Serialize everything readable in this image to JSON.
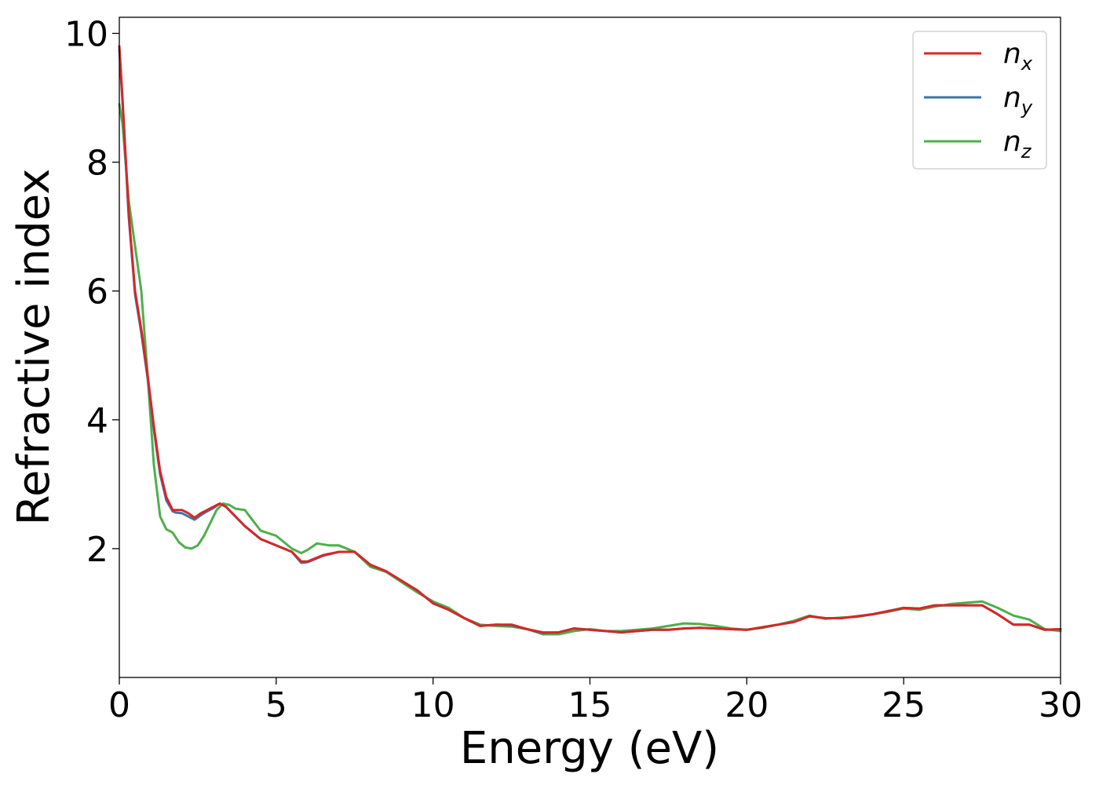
{
  "chart_data": {
    "type": "line",
    "xlabel": "Energy (eV)",
    "ylabel": "Refractive index",
    "xlim": [
      0,
      30
    ],
    "ylim": [
      0,
      10.25
    ],
    "xticks": [
      0,
      5,
      10,
      15,
      20,
      25,
      30
    ],
    "yticks": [
      2,
      4,
      6,
      8,
      10
    ],
    "grid": false,
    "legend": {
      "placement": "top-right"
    },
    "series": [
      {
        "name": "n_x",
        "label_base": "n",
        "label_sub": "x",
        "color": "#d62728",
        "x": [
          0,
          0.1,
          0.3,
          0.5,
          0.7,
          0.9,
          1.1,
          1.3,
          1.5,
          1.7,
          1.8,
          2.0,
          2.2,
          2.4,
          2.6,
          2.8,
          3.0,
          3.2,
          3.4,
          3.6,
          3.8,
          4.0,
          4.5,
          5.0,
          5.5,
          5.8,
          6.0,
          6.5,
          7.0,
          7.5,
          8.0,
          8.5,
          9.0,
          9.5,
          10.0,
          10.5,
          11.0,
          11.5,
          12.0,
          12.5,
          13.0,
          13.5,
          14.0,
          14.5,
          15.0,
          15.5,
          16.0,
          16.5,
          17.0,
          17.5,
          18.0,
          18.5,
          19.0,
          19.5,
          20.0,
          20.5,
          21.0,
          21.5,
          22.0,
          22.5,
          23.0,
          23.5,
          24.0,
          24.5,
          25.0,
          25.5,
          26.0,
          26.5,
          27.0,
          27.5,
          28.0,
          28.5,
          29.0,
          29.5,
          30.0
        ],
        "y": [
          9.8,
          9.0,
          7.2,
          6.0,
          5.4,
          4.7,
          3.9,
          3.2,
          2.8,
          2.6,
          2.6,
          2.6,
          2.55,
          2.48,
          2.55,
          2.6,
          2.65,
          2.7,
          2.65,
          2.55,
          2.45,
          2.35,
          2.15,
          2.05,
          1.95,
          1.8,
          1.8,
          1.9,
          1.95,
          1.95,
          1.75,
          1.65,
          1.5,
          1.35,
          1.15,
          1.05,
          0.92,
          0.8,
          0.82,
          0.82,
          0.75,
          0.7,
          0.7,
          0.76,
          0.74,
          0.72,
          0.7,
          0.72,
          0.74,
          0.74,
          0.76,
          0.77,
          0.76,
          0.75,
          0.74,
          0.78,
          0.82,
          0.86,
          0.95,
          0.92,
          0.92,
          0.95,
          0.98,
          1.03,
          1.08,
          1.07,
          1.12,
          1.12,
          1.12,
          1.12,
          0.98,
          0.82,
          0.82,
          0.74,
          0.75
        ]
      },
      {
        "name": "n_y",
        "label_base": "n",
        "label_sub": "y",
        "color": "#3d75a8",
        "x": [
          0,
          0.1,
          0.3,
          0.5,
          0.7,
          0.9,
          1.1,
          1.3,
          1.5,
          1.7,
          1.8,
          2.0,
          2.2,
          2.4,
          2.6,
          2.8,
          3.0,
          3.2,
          3.4,
          3.6,
          3.8,
          4.0,
          4.5,
          5.0,
          5.5,
          5.8,
          6.0,
          6.5,
          7.0,
          7.5,
          8.0,
          8.5,
          9.0,
          9.5,
          10.0,
          10.5,
          11.0,
          11.5,
          12.0,
          12.5,
          13.0,
          13.5,
          14.0,
          14.5,
          15.0,
          15.5,
          16.0,
          16.5,
          17.0,
          17.5,
          18.0,
          18.5,
          19.0,
          19.5,
          20.0,
          20.5,
          21.0,
          21.5,
          22.0,
          22.5,
          23.0,
          23.5,
          24.0,
          24.5,
          25.0,
          25.5,
          26.0,
          26.5,
          27.0,
          27.5,
          28.0,
          28.5,
          29.0,
          29.5,
          30.0
        ],
        "y": [
          9.75,
          8.95,
          7.15,
          5.95,
          5.35,
          4.65,
          3.85,
          3.15,
          2.75,
          2.58,
          2.56,
          2.55,
          2.5,
          2.45,
          2.52,
          2.58,
          2.63,
          2.7,
          2.65,
          2.55,
          2.45,
          2.35,
          2.15,
          2.05,
          1.95,
          1.78,
          1.79,
          1.89,
          1.95,
          1.95,
          1.75,
          1.65,
          1.5,
          1.35,
          1.15,
          1.05,
          0.92,
          0.8,
          0.82,
          0.81,
          0.75,
          0.69,
          0.7,
          0.76,
          0.74,
          0.72,
          0.7,
          0.72,
          0.74,
          0.74,
          0.76,
          0.77,
          0.76,
          0.75,
          0.74,
          0.78,
          0.82,
          0.86,
          0.95,
          0.92,
          0.92,
          0.95,
          0.98,
          1.03,
          1.08,
          1.07,
          1.12,
          1.12,
          1.12,
          1.12,
          0.98,
          0.82,
          0.82,
          0.74,
          0.75
        ]
      },
      {
        "name": "n_z",
        "label_base": "n",
        "label_sub": "z",
        "color": "#4daf4a",
        "x": [
          0,
          0.1,
          0.3,
          0.5,
          0.7,
          0.9,
          1.1,
          1.3,
          1.5,
          1.7,
          1.9,
          2.1,
          2.3,
          2.5,
          2.7,
          2.9,
          3.1,
          3.3,
          3.5,
          3.7,
          4.0,
          4.5,
          5.0,
          5.5,
          5.8,
          6.0,
          6.3,
          6.7,
          7.0,
          7.5,
          8.0,
          8.5,
          9.0,
          9.5,
          10.0,
          10.5,
          11.0,
          11.5,
          12.0,
          12.5,
          13.0,
          13.5,
          14.0,
          14.5,
          15.0,
          15.5,
          16.0,
          16.5,
          17.0,
          17.5,
          18.0,
          18.5,
          19.0,
          19.5,
          20.0,
          20.5,
          21.0,
          21.5,
          22.0,
          22.5,
          23.0,
          23.5,
          24.0,
          24.5,
          25.0,
          25.5,
          26.0,
          26.5,
          27.0,
          27.5,
          28.0,
          28.5,
          29.0,
          29.5,
          30.0
        ],
        "y": [
          8.9,
          8.6,
          7.4,
          6.7,
          6.0,
          4.7,
          3.3,
          2.5,
          2.3,
          2.25,
          2.1,
          2.02,
          2.0,
          2.05,
          2.2,
          2.4,
          2.6,
          2.7,
          2.68,
          2.62,
          2.6,
          2.28,
          2.2,
          2.0,
          1.93,
          1.98,
          2.08,
          2.05,
          2.05,
          1.95,
          1.72,
          1.64,
          1.48,
          1.32,
          1.18,
          1.08,
          0.92,
          0.82,
          0.8,
          0.79,
          0.75,
          0.67,
          0.67,
          0.72,
          0.75,
          0.72,
          0.72,
          0.74,
          0.76,
          0.8,
          0.84,
          0.83,
          0.8,
          0.76,
          0.74,
          0.77,
          0.82,
          0.88,
          0.96,
          0.91,
          0.93,
          0.94,
          0.98,
          1.02,
          1.07,
          1.05,
          1.1,
          1.14,
          1.16,
          1.18,
          1.08,
          0.96,
          0.9,
          0.75,
          0.72
        ]
      }
    ]
  }
}
